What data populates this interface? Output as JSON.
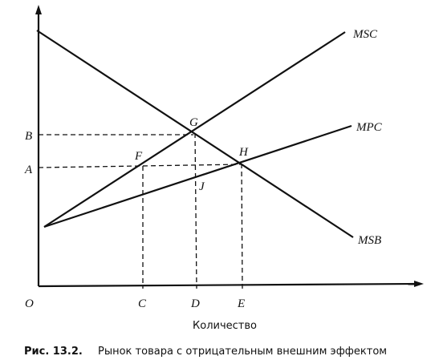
{
  "axis": {
    "origin": "O",
    "x_title": "Количество"
  },
  "lines": {
    "msc": "MSC",
    "mpc": "MPC",
    "msb": "MSB"
  },
  "points": {
    "g": "G",
    "h": "H",
    "f": "F",
    "j": "J"
  },
  "y_marks": {
    "b": "B",
    "a": "A"
  },
  "x_marks": {
    "c": "C",
    "d": "D",
    "e": "E"
  },
  "caption": {
    "label": "Рис. 13.2.",
    "text": "Рынок товара с отрицательным внешним эффектом"
  }
}
